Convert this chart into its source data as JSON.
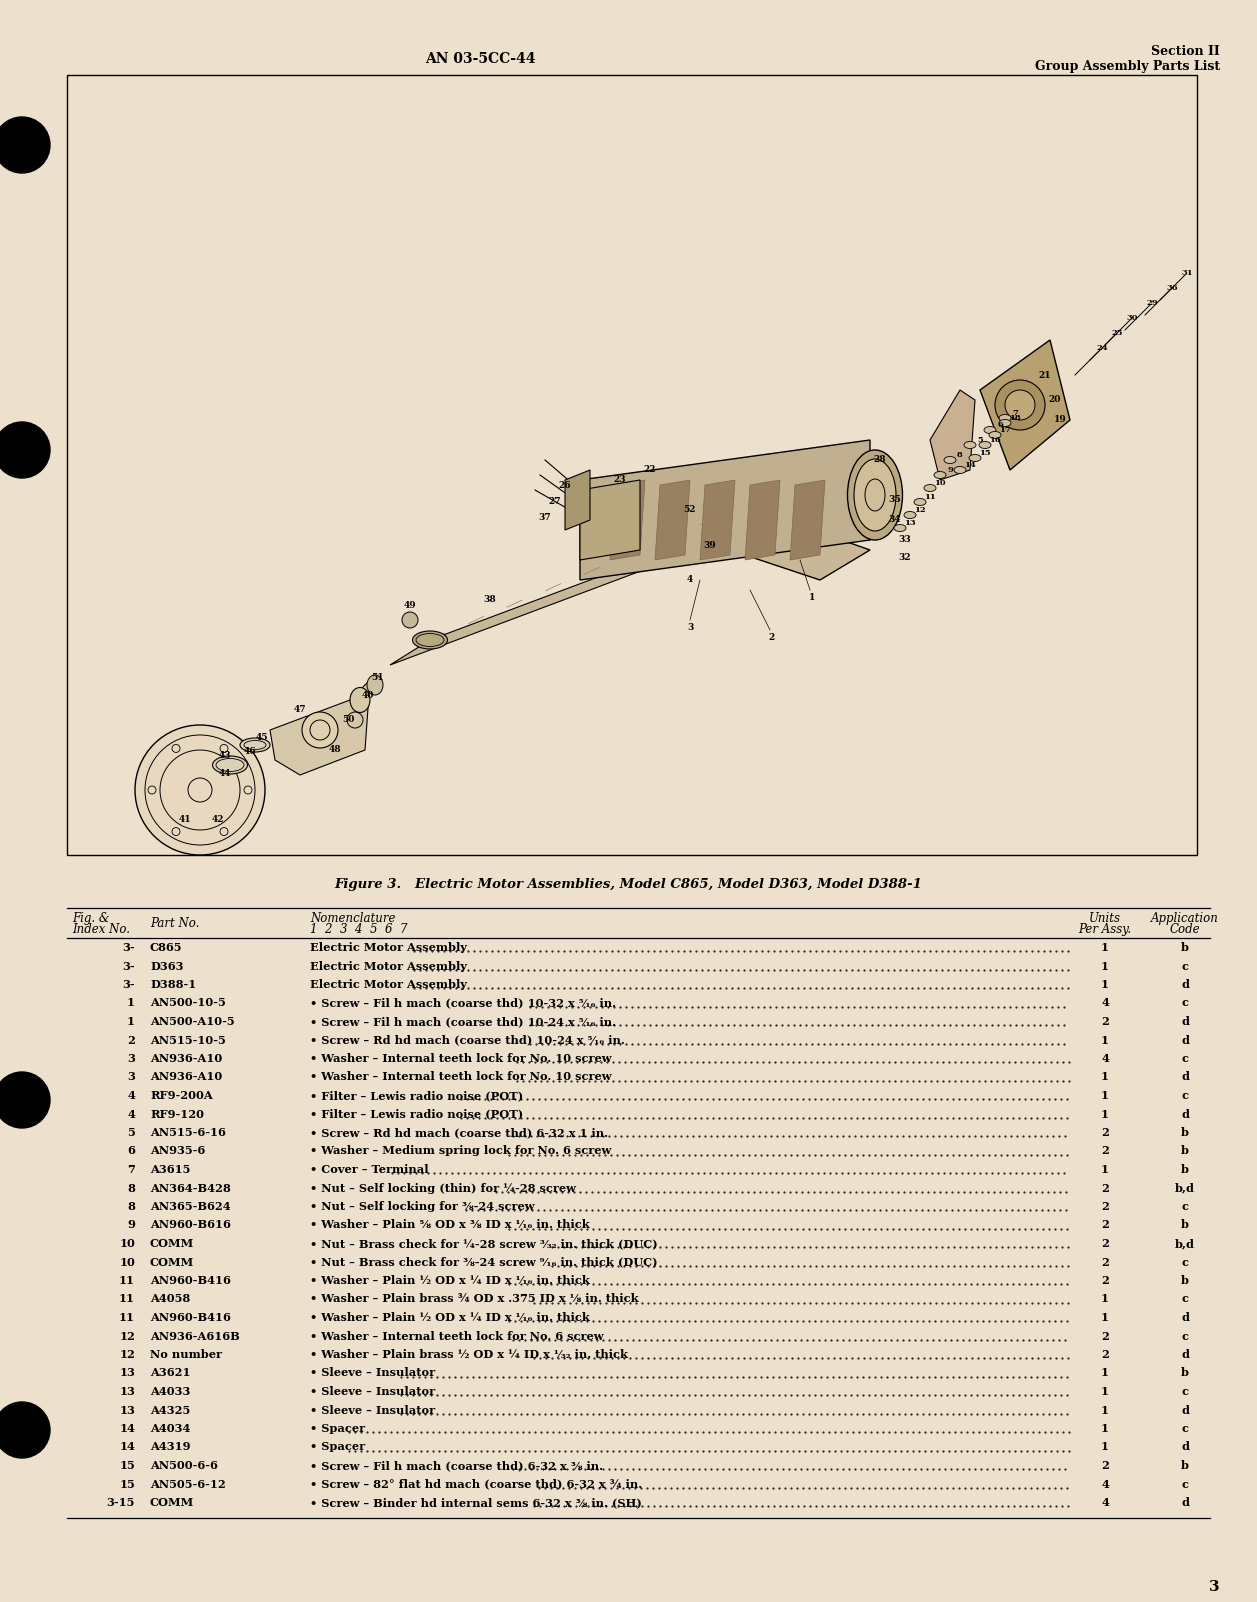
{
  "bg_color": "#ede0cc",
  "header_left": "AN 03-5CC-44",
  "header_right_line1": "Section II",
  "header_right_line2": "Group Assembly Parts List",
  "figure_caption": "Figure 3.   Electric Motor Assemblies, Model C865, Model D363, Model D388-1",
  "page_number": "3",
  "table_rows": [
    [
      "3-",
      "C865",
      "Electric Motor Assembly",
      "1",
      "b"
    ],
    [
      "3-",
      "D363",
      "Electric Motor Assembly",
      "1",
      "c"
    ],
    [
      "3-",
      "D388-1",
      "Electric Motor Assembly",
      "1",
      "d"
    ],
    [
      "1",
      "AN500-10-5",
      "Screw – Fil h mach (coarse thd) 10-32 x ⁵⁄₁₆ in.",
      "4",
      "c"
    ],
    [
      "1",
      "AN500-A10-5",
      "Screw – Fil h mach (coarse thd) 10-24 x ⁵⁄₁₆ in.",
      "2",
      "d"
    ],
    [
      "2",
      "AN515-10-5",
      "Screw – Rd hd mach (coarse thd) 10-24 x ⁵⁄₁₆ in.",
      "1",
      "d"
    ],
    [
      "3",
      "AN936-A10",
      "Washer – Internal teeth lock for No. 10 screw",
      "4",
      "c"
    ],
    [
      "3",
      "AN936-A10",
      "Washer – Internal teeth lock for No. 10 screw",
      "1",
      "d"
    ],
    [
      "4",
      "RF9-200A",
      "Filter – Lewis radio noise (POT)",
      "1",
      "c"
    ],
    [
      "4",
      "RF9-120",
      "Filter – Lewis radio noise (POT)",
      "1",
      "d"
    ],
    [
      "5",
      "AN515-6-16",
      "Screw – Rd hd mach (coarse thd) 6-32 x 1 in.",
      "2",
      "b"
    ],
    [
      "6",
      "AN935-6",
      "Washer – Medium spring lock for No. 6 screw",
      "2",
      "b"
    ],
    [
      "7",
      "A3615",
      "Cover – Terminal",
      "1",
      "b"
    ],
    [
      "8",
      "AN364-B428",
      "Nut – Self locking (thin) for ¼-28 screw",
      "2",
      "b,d"
    ],
    [
      "8",
      "AN365-B624",
      "Nut – Self locking for ⅜-24 screw",
      "2",
      "c"
    ],
    [
      "9",
      "AN960-B616",
      "Washer – Plain ⅝ OD x ⅜ ID x ¹⁄₁₆ in. thick",
      "2",
      "b"
    ],
    [
      "10",
      "COMM",
      "Nut – Brass check for ¼-28 screw ³⁄₃₂ in. thick (DUC)",
      "2",
      "b,d"
    ],
    [
      "10",
      "COMM",
      "Nut – Brass check for ⅜-24 screw ⁹⁄₁₆ in. thick (DUC)",
      "2",
      "c"
    ],
    [
      "11",
      "AN960-B416",
      "Washer – Plain ½ OD x ¼ ID x ¹⁄₁₆ in. thick",
      "2",
      "b"
    ],
    [
      "11",
      "A4058",
      "Washer – Plain brass ¾ OD x .375 ID x ⅛ in. thick",
      "1",
      "c"
    ],
    [
      "11",
      "AN960-B416",
      "Washer – Plain ½ OD x ¼ ID x ¹⁄₁₆ in. thick",
      "1",
      "d"
    ],
    [
      "12",
      "AN936-A616B",
      "Washer – Internal teeth lock for No. 6 screw",
      "2",
      "c"
    ],
    [
      "12",
      "No number",
      "Washer – Plain brass ½ OD x ¼ ID x ¹⁄₃₂ in. thick",
      "2",
      "d"
    ],
    [
      "13",
      "A3621",
      "Sleeve – Insulator",
      "1",
      "b"
    ],
    [
      "13",
      "A4033",
      "Sleeve – Insulator",
      "1",
      "c"
    ],
    [
      "13",
      "A4325",
      "Sleeve – Insulator",
      "1",
      "d"
    ],
    [
      "14",
      "A4034",
      "Spacer",
      "1",
      "c"
    ],
    [
      "14",
      "A4319",
      "Spacer",
      "1",
      "d"
    ],
    [
      "15",
      "AN500-6-6",
      "Screw – Fil h mach (coarse thd) 6-32 x ⅜ in.",
      "2",
      "b"
    ],
    [
      "15",
      "AN505-6-12",
      "Screw – 82° flat hd mach (coarse thd) 6-32 x ¾ in.",
      "4",
      "c"
    ],
    [
      "3-15",
      "COMM",
      "Screw – Binder hd internal sems 6-32 x ⅜ in. (SH)",
      "4",
      "d"
    ]
  ]
}
